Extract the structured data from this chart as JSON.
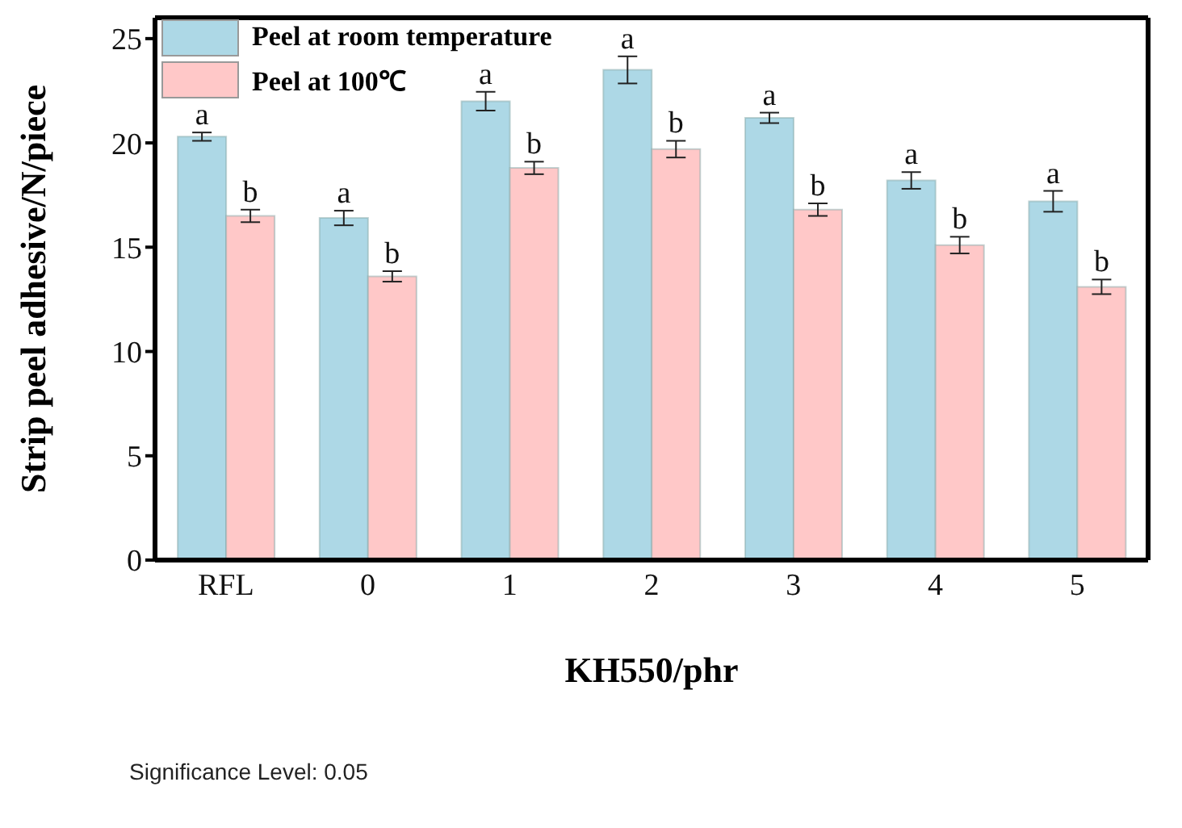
{
  "chart_data": {
    "type": "bar",
    "xlabel": "KH550/phr",
    "ylabel": "Strip peel adhesive/N/piece",
    "categories": [
      "RFL",
      "0",
      "1",
      "2",
      "3",
      "4",
      "5"
    ],
    "series": [
      {
        "name": "Peel at room temperature",
        "color": "#add8e6",
        "values": [
          20.3,
          16.4,
          22.0,
          23.5,
          21.2,
          18.2,
          17.2
        ],
        "errors": [
          0.2,
          0.35,
          0.45,
          0.65,
          0.25,
          0.4,
          0.5
        ],
        "value_labels": [
          "a",
          "a",
          "a",
          "a",
          "a",
          "a",
          "a"
        ]
      },
      {
        "name": "Peel at 100℃",
        "color": "#ffc8c8",
        "values": [
          16.5,
          13.6,
          18.8,
          19.7,
          16.8,
          15.1,
          13.1
        ],
        "errors": [
          0.3,
          0.25,
          0.3,
          0.4,
          0.3,
          0.4,
          0.35
        ],
        "value_labels": [
          "b",
          "b",
          "b",
          "b",
          "b",
          "b",
          "b"
        ]
      }
    ],
    "ylim": [
      0,
      26
    ],
    "yticks": [
      0,
      5,
      10,
      15,
      20,
      25
    ],
    "grid": false,
    "legend": "top left",
    "annotations": [
      "Significance Level: 0.05"
    ]
  }
}
